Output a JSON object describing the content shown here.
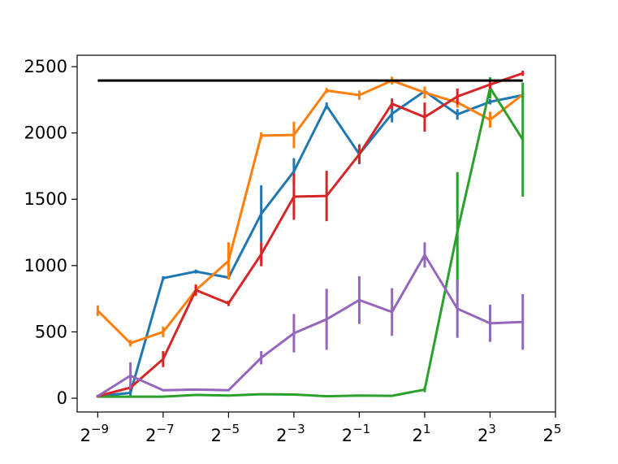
{
  "chart_data": {
    "type": "errorbar-line",
    "x": [
      0.001953125,
      0.00390625,
      0.0078125,
      0.015625,
      0.03125,
      0.0625,
      0.125,
      0.25,
      0.5,
      1,
      2,
      4,
      8,
      16
    ],
    "xscale": "log",
    "xbase": 2,
    "xlim": [
      0.001262,
      32
    ],
    "xticks": [
      {
        "value": 0.001953125,
        "label": "2",
        "exponent": "−9"
      },
      {
        "value": 0.0078125,
        "label": "2",
        "exponent": "−7"
      },
      {
        "value": 0.03125,
        "label": "2",
        "exponent": "−5"
      },
      {
        "value": 0.125,
        "label": "2",
        "exponent": "−3"
      },
      {
        "value": 0.5,
        "label": "2",
        "exponent": "−1"
      },
      {
        "value": 2,
        "label": "2",
        "exponent": "1"
      },
      {
        "value": 8,
        "label": "2",
        "exponent": "3"
      },
      {
        "value": 32,
        "label": "2",
        "exponent": "5"
      }
    ],
    "ylim": [
      -104,
      2586
    ],
    "yticks": [
      0,
      500,
      1000,
      1500,
      2000,
      2500
    ],
    "series": [
      {
        "color": "#1f77b4",
        "values": [
          15,
          40,
          905,
          955,
          910,
          1390,
          1710,
          2205,
          1840,
          2145,
          2315,
          2140,
          2235,
          2285
        ],
        "errors": [
          10,
          20,
          15,
          15,
          15,
          215,
          100,
          25,
          75,
          65,
          20,
          40,
          20,
          20
        ]
      },
      {
        "color": "#ff7f0e",
        "values": [
          660,
          415,
          500,
          815,
          1035,
          1980,
          1985,
          2320,
          2285,
          2395,
          2305,
          2230,
          2100,
          2290
        ],
        "errors": [
          40,
          25,
          40,
          45,
          140,
          25,
          100,
          20,
          35,
          30,
          45,
          40,
          60,
          25
        ]
      },
      {
        "color": "#2ca02c",
        "values": [
          12,
          12,
          12,
          25,
          20,
          30,
          28,
          15,
          20,
          18,
          65,
          1255,
          2340,
          1950
        ],
        "errors": [
          3,
          3,
          3,
          3,
          3,
          3,
          3,
          3,
          3,
          3,
          20,
          450,
          80,
          430
        ]
      },
      {
        "color": "#d62728",
        "values": [
          15,
          80,
          295,
          815,
          715,
          1085,
          1520,
          1525,
          1840,
          2220,
          2120,
          2275,
          2365,
          2450
        ],
        "errors": [
          10,
          20,
          60,
          40,
          20,
          90,
          175,
          190,
          70,
          40,
          110,
          60,
          30,
          20
        ]
      },
      {
        "color": "#9467bd",
        "values": [
          15,
          170,
          60,
          65,
          60,
          305,
          490,
          595,
          740,
          650,
          1080,
          675,
          565,
          575
        ],
        "errors": [
          5,
          100,
          5,
          5,
          5,
          50,
          145,
          230,
          180,
          180,
          95,
          220,
          140,
          210
        ]
      },
      {
        "color": "#000000",
        "values": [
          2395,
          2395,
          2395,
          2395,
          2395,
          2395,
          2395,
          2395,
          2395,
          2395,
          2395,
          2395,
          2395,
          2395
        ]
      }
    ]
  }
}
